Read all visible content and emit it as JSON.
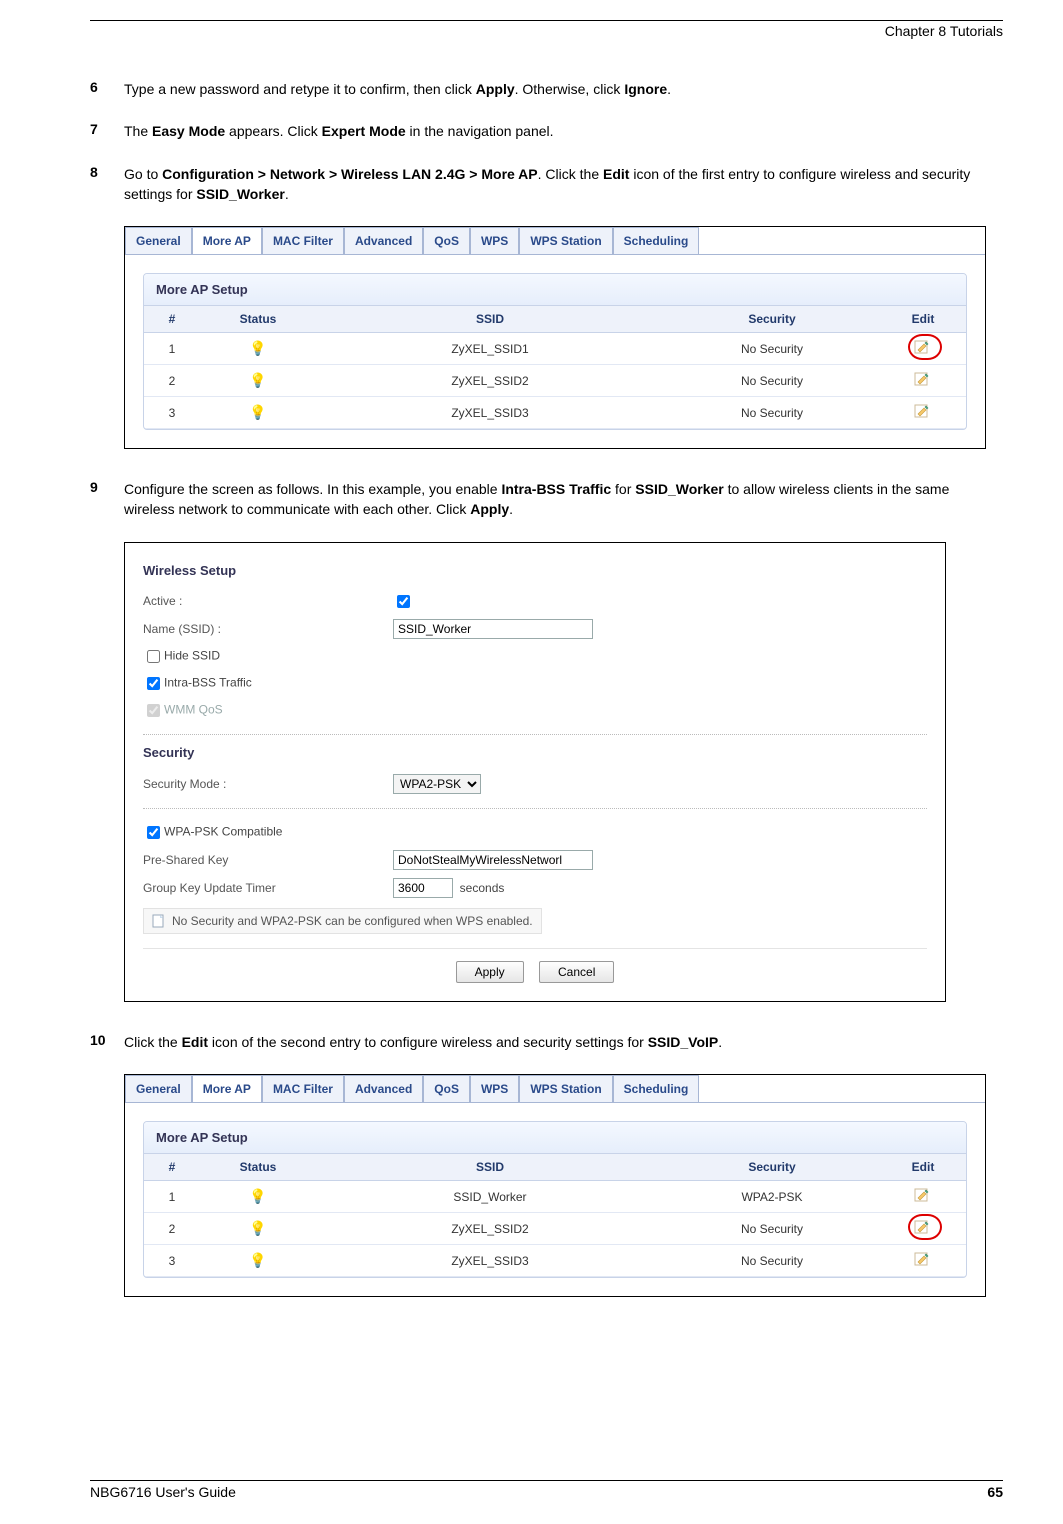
{
  "header": {
    "chapter": "Chapter 8 Tutorials"
  },
  "footer": {
    "guide": "NBG6716 User's Guide",
    "page": "65"
  },
  "steps": {
    "s6": {
      "num": "6",
      "pre": "Type a new password and retype it to confirm, then click ",
      "b1": "Apply",
      "mid": ". Otherwise, click ",
      "b2": "Ignore",
      "post": "."
    },
    "s7": {
      "num": "7",
      "pre": "The ",
      "b1": "Easy Mode",
      "mid": " appears. Click ",
      "b2": "Expert Mode",
      "post": " in the navigation panel."
    },
    "s8": {
      "num": "8",
      "pre": "Go to ",
      "b1": "Configuration > Network > Wireless LAN 2.4G > More AP",
      "mid": ". Click the ",
      "b2": "Edit",
      "post1": " icon of the first entry to configure wireless and security settings for ",
      "b3": "SSID_Worker",
      "post2": "."
    },
    "s9": {
      "num": "9",
      "pre": "Configure the screen as follows. In this example, you enable ",
      "b1": "Intra-BSS Traffic",
      "mid": " for ",
      "b2": "SSID_Worker",
      "post1": " to allow wireless clients in the same wireless network to communicate with each other. Click ",
      "b3": "Apply",
      "post2": "."
    },
    "s10": {
      "num": "10",
      "pre": "Click the ",
      "b1": "Edit",
      "mid": " icon of the second entry to configure wireless and security settings for ",
      "b2": "SSID_VoIP",
      "post": "."
    }
  },
  "tabs": [
    "General",
    "More AP",
    "MAC Filter",
    "Advanced",
    "QoS",
    "WPS",
    "WPS Station",
    "Scheduling"
  ],
  "panel1": {
    "title": "More AP Setup",
    "cols": [
      "#",
      "Status",
      "SSID",
      "Security",
      "Edit"
    ],
    "rows": [
      {
        "n": "1",
        "on": false,
        "ssid": "ZyXEL_SSID1",
        "sec": "No Security"
      },
      {
        "n": "2",
        "on": false,
        "ssid": "ZyXEL_SSID2",
        "sec": "No Security"
      },
      {
        "n": "3",
        "on": false,
        "ssid": "ZyXEL_SSID3",
        "sec": "No Security"
      }
    ],
    "highlightRow": 0
  },
  "form": {
    "sect1": "Wireless Setup",
    "active_lab": "Active :",
    "active": true,
    "name_lab": "Name (SSID) :",
    "name": "SSID_Worker",
    "hide_lab": "Hide SSID",
    "hide": false,
    "intra_lab": "Intra-BSS Traffic",
    "intra": true,
    "wmm_lab": "WMM QoS",
    "wmm": true,
    "sect2": "Security",
    "mode_lab": "Security Mode :",
    "mode": "WPA2-PSK",
    "compat_lab": "WPA-PSK Compatible",
    "compat": true,
    "psk_lab": "Pre-Shared Key",
    "psk": "DoNotStealMyWirelessNetworl",
    "gkt_lab": "Group Key Update Timer",
    "gkt": "3600",
    "gkt_unit": "seconds",
    "note": "No Security and WPA2-PSK can be configured when WPS enabled.",
    "apply": "Apply",
    "cancel": "Cancel"
  },
  "panel3": {
    "title": "More AP Setup",
    "cols": [
      "#",
      "Status",
      "SSID",
      "Security",
      "Edit"
    ],
    "rows": [
      {
        "n": "1",
        "on": true,
        "ssid": "SSID_Worker",
        "sec": "WPA2-PSK"
      },
      {
        "n": "2",
        "on": false,
        "ssid": "ZyXEL_SSID2",
        "sec": "No Security"
      },
      {
        "n": "3",
        "on": false,
        "ssid": "ZyXEL_SSID3",
        "sec": "No Security"
      }
    ],
    "highlightRow": 1
  }
}
